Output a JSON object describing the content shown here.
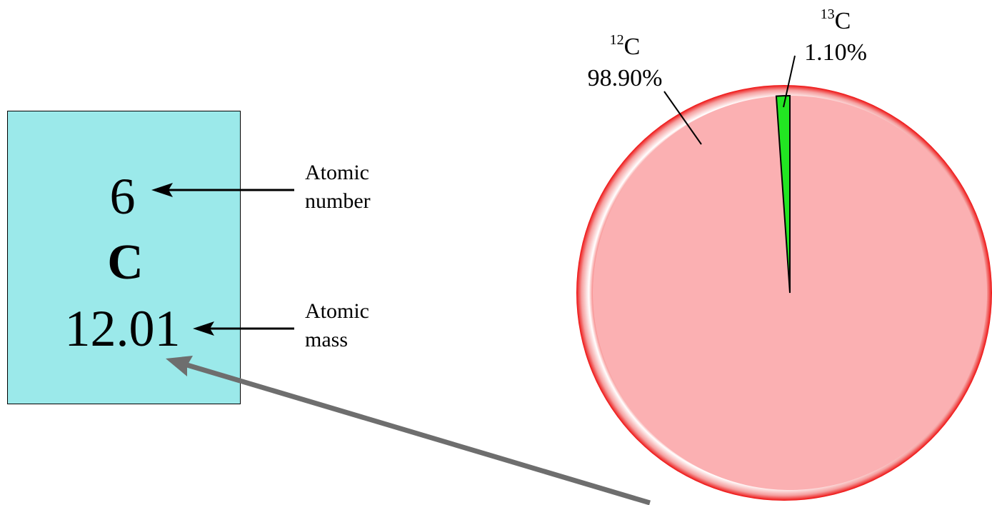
{
  "element": {
    "atomic_number": "6",
    "symbol": "C",
    "atomic_mass": "12.01",
    "box_color": "#9be9ea"
  },
  "callouts": {
    "atomic_number": [
      "Atomic",
      "number"
    ],
    "atomic_mass": [
      "Atomic",
      "mass"
    ]
  },
  "chart_data": {
    "type": "pie",
    "slices": [
      {
        "mass_number": "12",
        "symbol": "C",
        "percent_label": "98.90%",
        "value": 98.9,
        "color": "#fbb0b2"
      },
      {
        "mass_number": "13",
        "symbol": "C",
        "percent_label": "1.10%",
        "value": 1.1,
        "color": "#22e622"
      }
    ],
    "rim_color": "#ee1111"
  }
}
